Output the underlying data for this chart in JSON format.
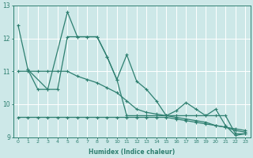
{
  "background_color": "#cde8e8",
  "grid_color": "#ffffff",
  "line_color": "#2e7f70",
  "xlabel": "Humidex (Indice chaleur)",
  "xlim": [
    -0.5,
    23.5
  ],
  "ylim": [
    9,
    13
  ],
  "yticks": [
    9,
    10,
    11,
    12,
    13
  ],
  "xticks": [
    0,
    1,
    2,
    3,
    4,
    5,
    6,
    7,
    8,
    9,
    10,
    11,
    12,
    13,
    14,
    15,
    16,
    17,
    18,
    19,
    20,
    21,
    22,
    23
  ],
  "line1_x": [
    0,
    1,
    3,
    5,
    6,
    7,
    8,
    9,
    10,
    11,
    12,
    13,
    14,
    15,
    16,
    17,
    18,
    19,
    20,
    21,
    22,
    23
  ],
  "line1_y": [
    12.4,
    11.05,
    10.45,
    12.8,
    12.05,
    12.05,
    12.05,
    11.45,
    10.75,
    11.5,
    10.7,
    10.45,
    10.1,
    9.65,
    9.65,
    9.65,
    9.65,
    9.65,
    9.65,
    9.65,
    9.1,
    9.1
  ],
  "line2_x": [
    0,
    1,
    2,
    3,
    4,
    5,
    6,
    7,
    8,
    9,
    10,
    11,
    12,
    13,
    14,
    15,
    16,
    17,
    18,
    19,
    20,
    21,
    22,
    23
  ],
  "line2_y": [
    11.0,
    11.0,
    11.0,
    11.0,
    11.0,
    11.0,
    10.85,
    10.75,
    10.65,
    10.5,
    10.35,
    10.1,
    9.85,
    9.75,
    9.7,
    9.65,
    9.6,
    9.55,
    9.5,
    9.45,
    9.35,
    9.3,
    9.2,
    9.15
  ],
  "line3_x": [
    0,
    1,
    2,
    3,
    4,
    5,
    6,
    7,
    8,
    9,
    10,
    11,
    12,
    13,
    14,
    15,
    16,
    17,
    18,
    19,
    20,
    21,
    22,
    23
  ],
  "line3_y": [
    9.6,
    9.6,
    9.6,
    9.6,
    9.6,
    9.6,
    9.6,
    9.6,
    9.6,
    9.6,
    9.6,
    9.6,
    9.6,
    9.6,
    9.6,
    9.6,
    9.55,
    9.5,
    9.45,
    9.4,
    9.35,
    9.3,
    9.25,
    9.2
  ],
  "line4_x": [
    1,
    2,
    3,
    4,
    5,
    6,
    7,
    8,
    9,
    10,
    11,
    12,
    13,
    14,
    15,
    16,
    17,
    18,
    19,
    20,
    21,
    22,
    23
  ],
  "line4_y": [
    11.05,
    10.45,
    10.45,
    10.45,
    12.05,
    12.05,
    12.05,
    12.05,
    11.45,
    10.75,
    9.65,
    9.65,
    9.65,
    9.65,
    9.65,
    9.8,
    10.05,
    9.85,
    9.65,
    9.85,
    9.35,
    9.05,
    9.1
  ]
}
